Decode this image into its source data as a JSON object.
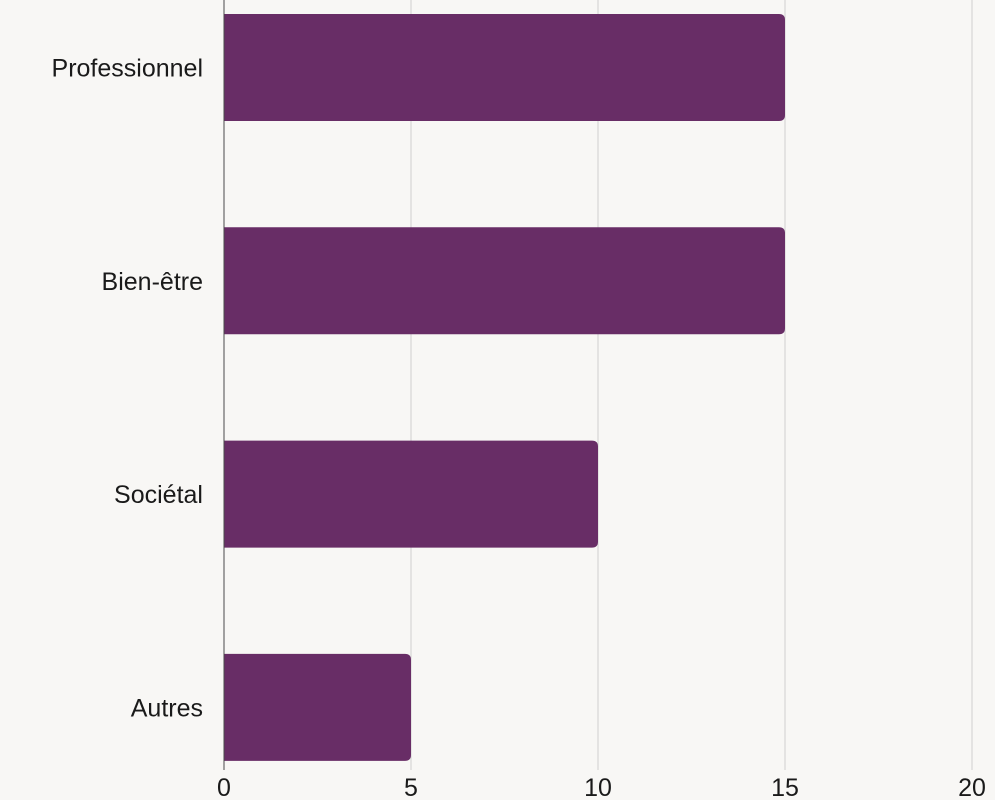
{
  "chart_data": {
    "type": "bar",
    "orientation": "horizontal",
    "title": "",
    "xlabel": "",
    "ylabel": "",
    "categories": [
      "Professionnel",
      "Bien-être",
      "Sociétal",
      "Autres"
    ],
    "values": [
      15,
      15,
      10,
      5
    ],
    "xlim": [
      0,
      20
    ],
    "xticks": [
      0,
      5,
      10,
      15,
      20
    ],
    "xtick_labels": [
      "0",
      "5",
      "10",
      "15",
      "20"
    ],
    "grid": "vertical",
    "legend": "none",
    "colors": {
      "bar": "#682d66",
      "grid": "#cfcfcf",
      "axis": "#4a4a4a",
      "background": "#f8f7f5",
      "text": "#1a1a1a"
    }
  }
}
